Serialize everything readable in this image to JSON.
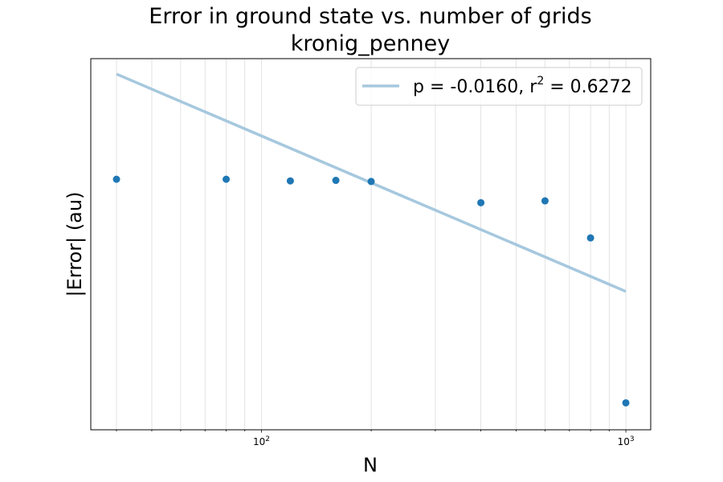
{
  "chart_data": {
    "type": "scatter",
    "title": "Error in ground state vs. number of grids",
    "subtitle": "kronig_penney",
    "xlabel": "N",
    "ylabel": "|Error| (au)",
    "x_scale": "log",
    "y_scale": "log",
    "xlim": [
      34,
      1170
    ],
    "grid": "x-axis vertical gridlines (major and minor)",
    "x_tick_labels": [
      {
        "value": 100,
        "base": "10",
        "exp": "2"
      },
      {
        "value": 1000,
        "base": "10",
        "exp": "3"
      }
    ],
    "series": [
      {
        "kind": "points",
        "color": "#1f77b4",
        "x": [
          40,
          80,
          120,
          160,
          200,
          400,
          600,
          800,
          1000
        ],
        "y_relative": [
          1.0,
          1.0,
          0.982,
          0.988,
          0.976,
          0.775,
          0.791,
          0.529,
          0.0884
        ]
      },
      {
        "kind": "fit-line",
        "color": "#a6c8de",
        "x": [
          40,
          1000
        ],
        "y_relative": [
          3.13,
          0.296
        ]
      }
    ],
    "legend": {
      "position": "upper-right",
      "entries": [
        {
          "series": 1,
          "label_prefix": "p = -0.0160, r",
          "label_sup": "2",
          "label_suffix": " = 0.6272"
        }
      ]
    }
  }
}
